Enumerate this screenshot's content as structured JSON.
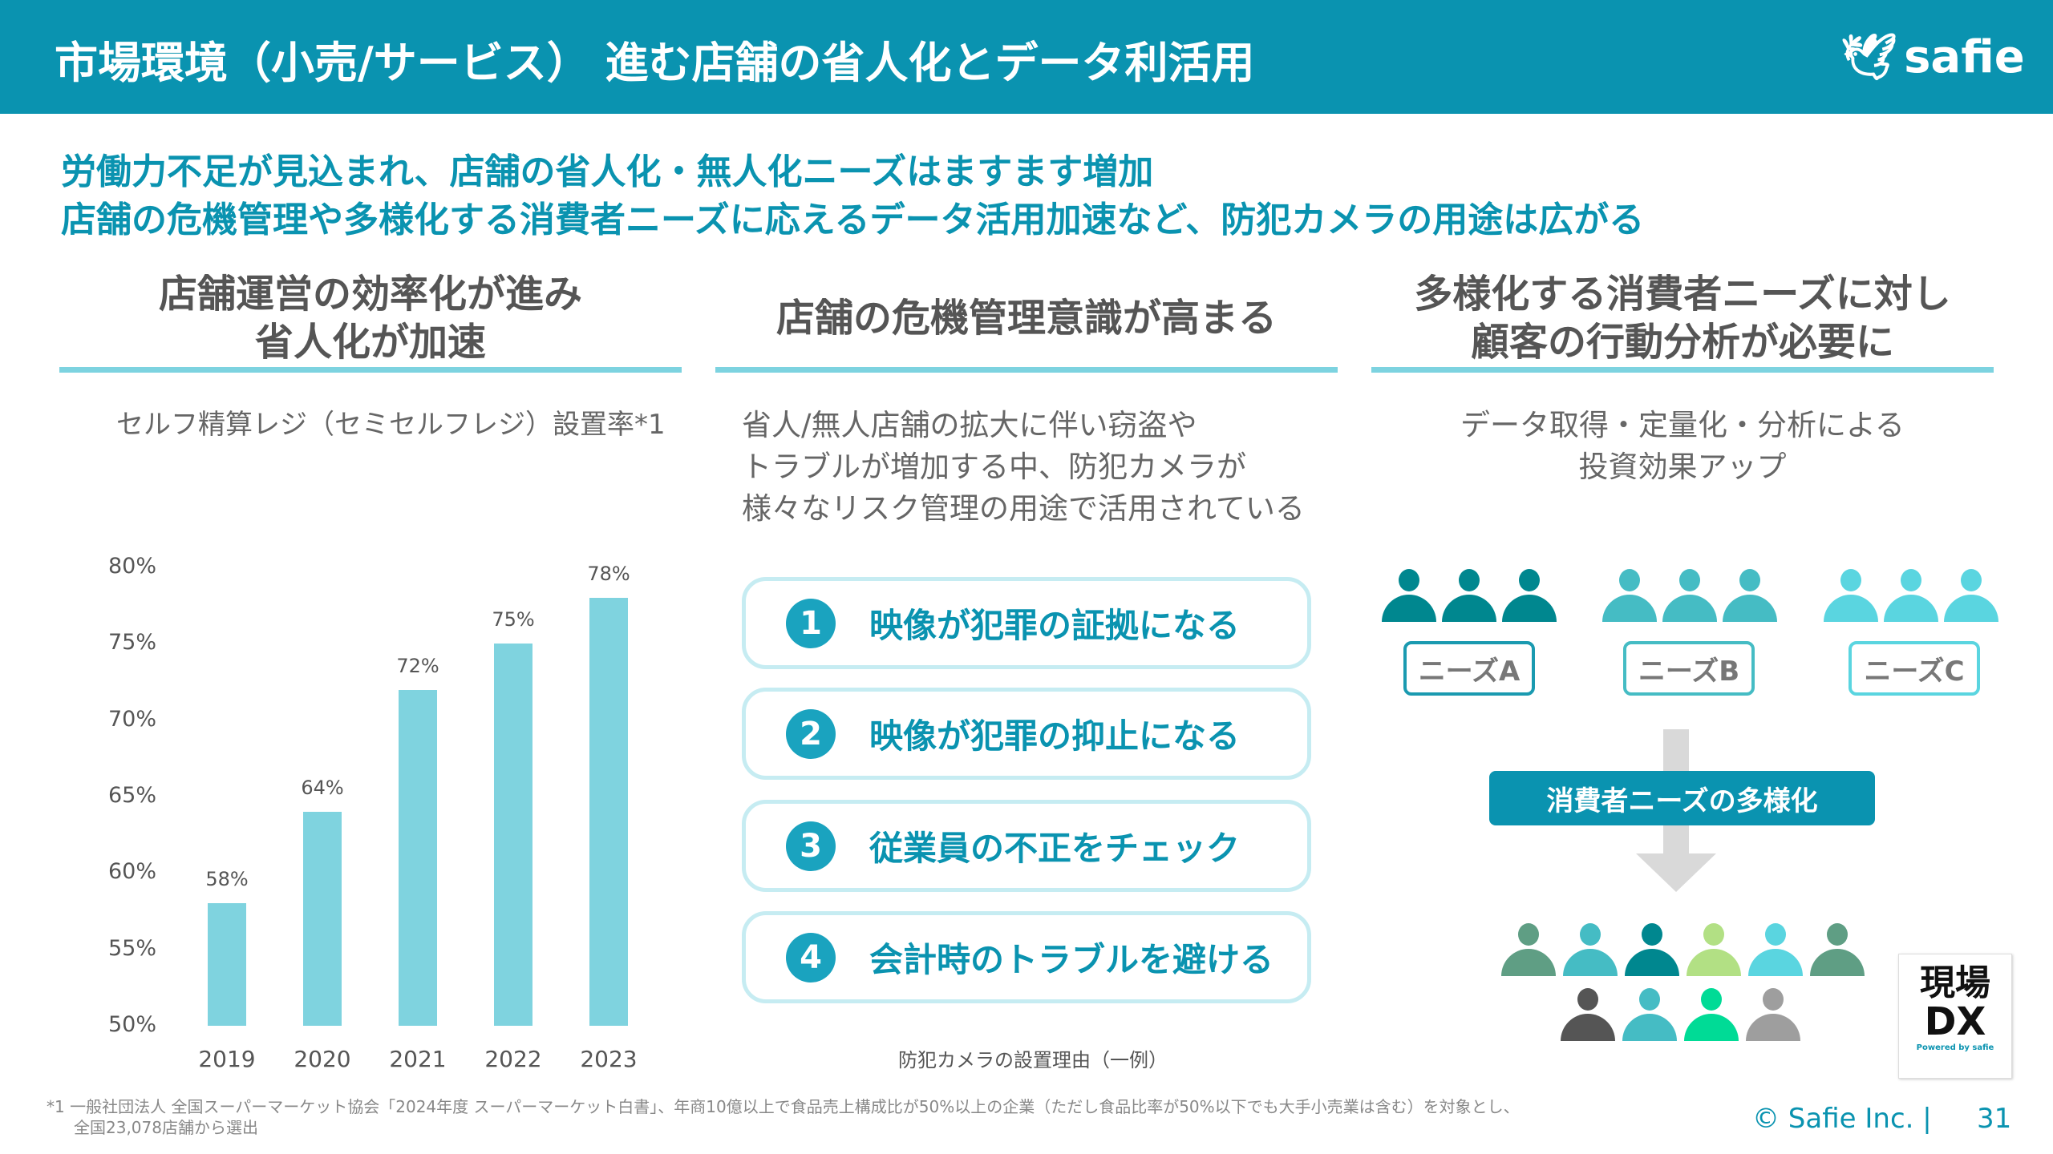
{
  "header": {
    "title": "市場環境（小売/サービス） 進む店舗の省人化とデータ利活用",
    "logo": "safie"
  },
  "subtitle": [
    "労働力不足が見込まれ、店舗の省人化・無人化ニーズはますます増加",
    "店舗の危機管理や多様化する消費者ニーズに応えるデータ活用加速など、防犯カメラの用途は広がる"
  ],
  "col1": {
    "heading": [
      "店舗運営の効率化が進み",
      "省人化が加速"
    ]
  },
  "col2": {
    "heading": "店舗の危機管理意識が高まる",
    "text": [
      "省人/無人店舗の拡大に伴い窃盗や",
      "トラブルが増加する中、防犯カメラが",
      "様々なリスク管理の用途で活用されている"
    ],
    "items": [
      {
        "num": "1",
        "label": "映像が犯罪の証拠になる"
      },
      {
        "num": "2",
        "label": "映像が犯罪の抑止になる"
      },
      {
        "num": "3",
        "label": "従業員の不正をチェック"
      },
      {
        "num": "4",
        "label": "会計時のトラブルを避ける"
      }
    ],
    "caption": "防犯カメラの設置理由（一例）"
  },
  "col3": {
    "heading": [
      "多様化する消費者ニーズに対し",
      "顧客の行動分析が必要に"
    ],
    "text": [
      "データ取得・定量化・分析による",
      "投資効果アップ"
    ],
    "needs": [
      "ニーズA",
      "ニーズB",
      "ニーズC"
    ],
    "banner": "消費者ニーズの多様化",
    "group_colors": [
      "#00878f",
      "#45bcc4",
      "#5ad5e0"
    ],
    "mixed_colors": [
      "#5f9e84",
      "#45bcc4",
      "#00878f",
      "#b2e084",
      "#5ad5e0",
      "#5f9e84",
      "#555555",
      "#45bcc4",
      "#00db96",
      "#9e9e9e"
    ]
  },
  "dx_logo": {
    "line1": "現場",
    "line2": "DX",
    "powered": "Powered by safie"
  },
  "footer": {
    "note": [
      "*1 一般社団法人 全国スーパーマーケット協会「2024年度 スーパーマーケット白書」、年商10億以上で食品売上構成比が50%以上の企業（ただし食品比率が50%以下でも大手小売業は含む）を対象とし、",
      "全国23,078店舗から選出"
    ],
    "copyright": "© Safie Inc.",
    "page": "31"
  },
  "chart_data": {
    "type": "bar",
    "title": "セルフ精算レジ（セミセルフレジ）設置率*1",
    "categories": [
      "2019",
      "2020",
      "2021",
      "2022",
      "2023"
    ],
    "values": [
      58,
      64,
      72,
      75,
      78
    ],
    "labels": [
      "58%",
      "64%",
      "72%",
      "75%",
      "78%"
    ],
    "ylim": [
      50,
      80
    ],
    "yticks": [
      "50%",
      "55%",
      "60%",
      "65%",
      "70%",
      "75%",
      "80%"
    ],
    "color": "#7fd3df"
  }
}
